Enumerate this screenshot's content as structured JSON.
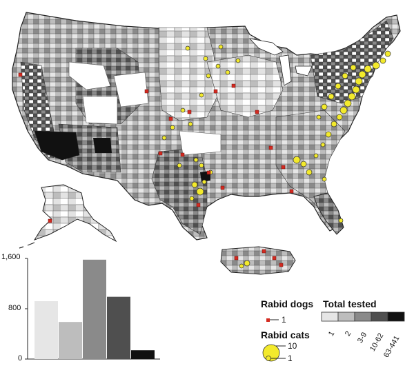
{
  "map": {
    "regions": [
      "contiguous-us",
      "alaska",
      "hawaii",
      "puerto-rico"
    ],
    "shading_colors": [
      "#e6e6e6",
      "#bdbdbd",
      "#8a8a8a",
      "#4f4f4f",
      "#111111"
    ],
    "dog_marker_color": "#d42a20",
    "cat_marker_color": "#f3ea2c"
  },
  "legend": {
    "dogs_title": "Rabid dogs",
    "total_title": "Total tested",
    "cats_title": "Rabid cats",
    "dog_value": "1",
    "cat_large": "10",
    "cat_small": "1",
    "categories": [
      {
        "label": "1",
        "color": "#e6e6e6"
      },
      {
        "label": "2",
        "color": "#bdbdbd"
      },
      {
        "label": "3-9",
        "color": "#8a8a8a"
      },
      {
        "label": "10-62",
        "color": "#4f4f4f"
      },
      {
        "label": "63-441",
        "color": "#111111"
      }
    ]
  },
  "chart_data": {
    "type": "bar",
    "categories": [
      "1",
      "2",
      "3-9",
      "10-62",
      "63-441"
    ],
    "values": [
      920,
      590,
      1580,
      990,
      140
    ],
    "colors": [
      "#e6e6e6",
      "#bdbdbd",
      "#8a8a8a",
      "#4f4f4f",
      "#111111"
    ],
    "ylim": [
      0,
      1600
    ],
    "yticks": [
      "0",
      "800",
      "1,600"
    ],
    "title": "",
    "xlabel": "",
    "ylabel": ""
  }
}
